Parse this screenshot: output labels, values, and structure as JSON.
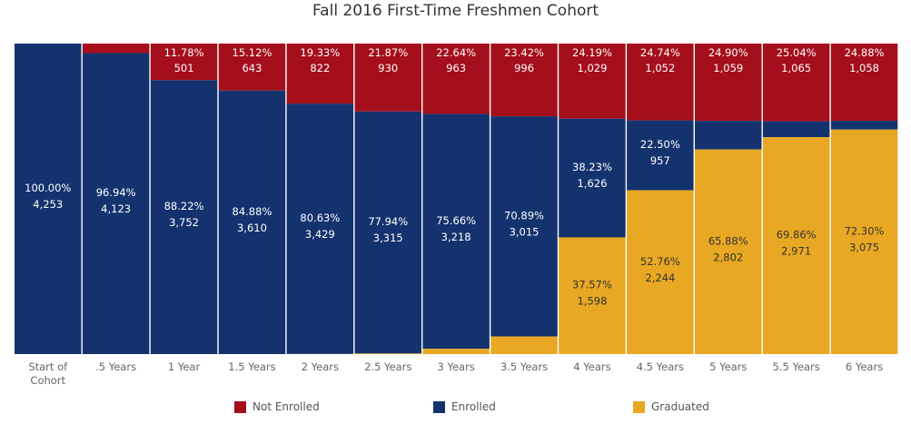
{
  "chart_data": {
    "type": "bar",
    "stacked": true,
    "title": "Fall 2016 First-Time Freshmen Cohort",
    "categories": [
      "Start of Cohort",
      ".5 Years",
      "1 Year",
      "1.5 Years",
      "2 Years",
      "2.5 Years",
      "3 Years",
      "3.5 Years",
      "4 Years",
      "4.5 Years",
      "5 Years",
      "5.5 Years",
      "6 Years"
    ],
    "ylim": [
      0,
      100
    ],
    "grid": false,
    "legend_position": "bottom",
    "series": [
      {
        "name": "Not Enrolled",
        "color": "#a50e1b",
        "values": [
          0,
          3.06,
          11.78,
          15.12,
          19.33,
          21.87,
          22.64,
          23.42,
          24.19,
          24.74,
          24.9,
          25.04,
          24.88
        ],
        "labels": [
          "",
          "",
          "11.78%",
          "15.12%",
          "19.33%",
          "21.87%",
          "22.64%",
          "23.42%",
          "24.19%",
          "24.74%",
          "24.90%",
          "25.04%",
          "24.88%"
        ],
        "counts": [
          "",
          "",
          "501",
          "643",
          "822",
          "930",
          "963",
          "996",
          "1,029",
          "1,052",
          "1,059",
          "1,065",
          "1,058"
        ]
      },
      {
        "name": "Enrolled",
        "color": "#14336e",
        "values": [
          100.0,
          96.94,
          88.22,
          84.88,
          80.63,
          77.94,
          75.66,
          70.89,
          38.23,
          22.5,
          9.22,
          5.1,
          2.82
        ],
        "labels": [
          "100.00%",
          "96.94%",
          "88.22%",
          "84.88%",
          "80.63%",
          "77.94%",
          "75.66%",
          "70.89%",
          "38.23%",
          "22.50%",
          "",
          "",
          ""
        ],
        "counts": [
          "4,253",
          "4,123",
          "3,752",
          "3,610",
          "3,429",
          "3,315",
          "3,218",
          "3,015",
          "1,626",
          "957",
          "",
          "",
          ""
        ]
      },
      {
        "name": "Graduated",
        "color": "#e9a823",
        "values": [
          0,
          0,
          0,
          0,
          0,
          0.19,
          1.7,
          5.69,
          37.57,
          52.76,
          65.88,
          69.86,
          72.3
        ],
        "labels": [
          "",
          "",
          "",
          "",
          "",
          "",
          "",
          "",
          "37.57%",
          "52.76%",
          "65.88%",
          "69.86%",
          "72.30%"
        ],
        "counts": [
          "",
          "",
          "",
          "",
          "",
          "",
          "",
          "",
          "1,598",
          "2,244",
          "2,802",
          "2,971",
          "3,075"
        ]
      }
    ]
  }
}
